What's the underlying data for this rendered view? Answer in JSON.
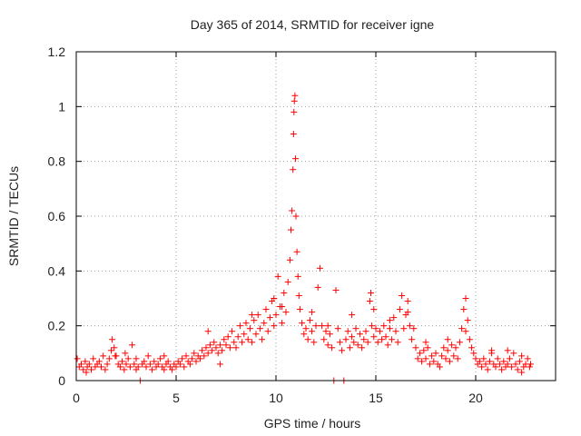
{
  "chart_data": {
    "type": "scatter",
    "title": "Day 365 of 2014, SRMTID for receiver igne",
    "xlabel": "GPS time / hours",
    "ylabel": "SRMTID / TECUs",
    "xlim": [
      0,
      24
    ],
    "ylim": [
      0,
      1.2
    ],
    "xticks": [
      0,
      5,
      10,
      15,
      20
    ],
    "yticks": [
      0,
      0.2,
      0.4,
      0.6,
      0.8,
      1,
      1.2
    ],
    "xtick_labels": [
      "0",
      "5",
      "10",
      "15",
      "20"
    ],
    "ytick_labels": [
      "0",
      "0.2",
      "0.4",
      "0.6",
      "0.8",
      "1",
      "1.2"
    ],
    "grid": true,
    "marker": "+",
    "colors": {
      "marker": "#ff0000",
      "grid": "#a0a0a0",
      "axis": "#000000"
    },
    "series": [
      {
        "name": "SRMTID",
        "points": [
          [
            0.05,
            0.08
          ],
          [
            0.15,
            0.05
          ],
          [
            0.25,
            0.06
          ],
          [
            0.35,
            0.04
          ],
          [
            0.45,
            0.07
          ],
          [
            0.55,
            0.05
          ],
          [
            0.65,
            0.06
          ],
          [
            0.75,
            0.04
          ],
          [
            0.85,
            0.08
          ],
          [
            0.95,
            0.05
          ],
          [
            1.05,
            0.06
          ],
          [
            1.15,
            0.07
          ],
          [
            1.25,
            0.05
          ],
          [
            1.35,
            0.09
          ],
          [
            1.45,
            0.04
          ],
          [
            1.55,
            0.06
          ],
          [
            1.65,
            0.08
          ],
          [
            1.75,
            0.11
          ],
          [
            1.8,
            0.15
          ],
          [
            1.9,
            0.12
          ],
          [
            2.0,
            0.09
          ],
          [
            2.1,
            0.06
          ],
          [
            2.2,
            0.05
          ],
          [
            2.3,
            0.07
          ],
          [
            2.4,
            0.04
          ],
          [
            2.5,
            0.06
          ],
          [
            2.6,
            0.08
          ],
          [
            2.7,
            0.05
          ],
          [
            2.8,
            0.13
          ],
          [
            2.9,
            0.06
          ],
          [
            3.0,
            0.04
          ],
          [
            3.1,
            0.05
          ],
          [
            3.2,
            0.0
          ],
          [
            3.3,
            0.06
          ],
          [
            3.4,
            0.07
          ],
          [
            3.5,
            0.05
          ],
          [
            3.6,
            0.09
          ],
          [
            3.7,
            0.06
          ],
          [
            3.8,
            0.04
          ],
          [
            3.9,
            0.07
          ],
          [
            4.0,
            0.05
          ],
          [
            4.1,
            0.06
          ],
          [
            4.2,
            0.08
          ],
          [
            4.3,
            0.05
          ],
          [
            4.4,
            0.04
          ],
          [
            4.5,
            0.06
          ],
          [
            4.6,
            0.07
          ],
          [
            4.7,
            0.05
          ],
          [
            4.8,
            0.04
          ],
          [
            4.9,
            0.06
          ],
          [
            5.0,
            0.05
          ],
          [
            5.1,
            0.07
          ],
          [
            5.2,
            0.06
          ],
          [
            5.3,
            0.08
          ],
          [
            5.4,
            0.05
          ],
          [
            5.5,
            0.09
          ],
          [
            5.6,
            0.07
          ],
          [
            5.7,
            0.06
          ],
          [
            5.8,
            0.08
          ],
          [
            5.9,
            0.1
          ],
          [
            6.0,
            0.07
          ],
          [
            6.1,
            0.09
          ],
          [
            6.2,
            0.08
          ],
          [
            6.3,
            0.11
          ],
          [
            6.4,
            0.09
          ],
          [
            6.5,
            0.12
          ],
          [
            6.6,
            0.1
          ],
          [
            6.7,
            0.13
          ],
          [
            6.8,
            0.11
          ],
          [
            6.9,
            0.14
          ],
          [
            7.0,
            0.12
          ],
          [
            7.1,
            0.1
          ],
          [
            7.2,
            0.13
          ],
          [
            7.3,
            0.11
          ],
          [
            7.4,
            0.15
          ],
          [
            7.5,
            0.13
          ],
          [
            7.6,
            0.16
          ],
          [
            7.7,
            0.12
          ],
          [
            7.8,
            0.18
          ],
          [
            7.9,
            0.14
          ],
          [
            8.0,
            0.12
          ],
          [
            8.1,
            0.16
          ],
          [
            8.2,
            0.2
          ],
          [
            8.3,
            0.14
          ],
          [
            8.4,
            0.17
          ],
          [
            8.5,
            0.21
          ],
          [
            8.6,
            0.15
          ],
          [
            8.7,
            0.19
          ],
          [
            8.8,
            0.14
          ],
          [
            8.9,
            0.22
          ],
          [
            9.0,
            0.17
          ],
          [
            9.1,
            0.24
          ],
          [
            9.2,
            0.19
          ],
          [
            9.3,
            0.15
          ],
          [
            9.4,
            0.21
          ],
          [
            9.5,
            0.26
          ],
          [
            9.6,
            0.18
          ],
          [
            9.7,
            0.23
          ],
          [
            9.8,
            0.29
          ],
          [
            9.9,
            0.2
          ],
          [
            10.0,
            0.24
          ],
          [
            10.1,
            0.38
          ],
          [
            10.2,
            0.27
          ],
          [
            10.3,
            0.21
          ],
          [
            10.4,
            0.32
          ],
          [
            10.5,
            0.25
          ],
          [
            10.6,
            0.36
          ],
          [
            10.7,
            0.44
          ],
          [
            10.75,
            0.55
          ],
          [
            10.8,
            0.62
          ],
          [
            10.85,
            0.77
          ],
          [
            10.88,
            0.9
          ],
          [
            10.9,
            0.98
          ],
          [
            10.92,
            1.02
          ],
          [
            10.95,
            1.04
          ],
          [
            10.98,
            0.81
          ],
          [
            11.0,
            0.6
          ],
          [
            11.05,
            0.47
          ],
          [
            11.1,
            0.38
          ],
          [
            11.15,
            0.31
          ],
          [
            11.2,
            0.26
          ],
          [
            11.3,
            0.21
          ],
          [
            11.4,
            0.17
          ],
          [
            11.5,
            0.19
          ],
          [
            11.6,
            0.15
          ],
          [
            11.7,
            0.22
          ],
          [
            11.8,
            0.18
          ],
          [
            11.9,
            0.14
          ],
          [
            12.0,
            0.2
          ],
          [
            12.1,
            0.34
          ],
          [
            12.2,
            0.41
          ],
          [
            12.3,
            0.2
          ],
          [
            12.4,
            0.15
          ],
          [
            12.5,
            0.18
          ],
          [
            12.6,
            0.13
          ],
          [
            12.7,
            0.17
          ],
          [
            12.8,
            0.12
          ],
          [
            12.9,
            0.0
          ],
          [
            13.0,
            0.33
          ],
          [
            13.1,
            0.19
          ],
          [
            13.2,
            0.14
          ],
          [
            13.3,
            0.11
          ],
          [
            13.4,
            0.0
          ],
          [
            13.5,
            0.15
          ],
          [
            13.6,
            0.18
          ],
          [
            13.7,
            0.12
          ],
          [
            13.8,
            0.16
          ],
          [
            13.9,
            0.14
          ],
          [
            14.0,
            0.19
          ],
          [
            14.1,
            0.13
          ],
          [
            14.2,
            0.17
          ],
          [
            14.3,
            0.12
          ],
          [
            14.4,
            0.15
          ],
          [
            14.5,
            0.18
          ],
          [
            14.6,
            0.14
          ],
          [
            14.7,
            0.29
          ],
          [
            14.75,
            0.32
          ],
          [
            14.8,
            0.2
          ],
          [
            14.9,
            0.16
          ],
          [
            15.0,
            0.19
          ],
          [
            15.1,
            0.14
          ],
          [
            15.2,
            0.18
          ],
          [
            15.3,
            0.15
          ],
          [
            15.4,
            0.2
          ],
          [
            15.5,
            0.16
          ],
          [
            15.6,
            0.13
          ],
          [
            15.7,
            0.19
          ],
          [
            15.8,
            0.15
          ],
          [
            15.9,
            0.23
          ],
          [
            16.0,
            0.18
          ],
          [
            16.1,
            0.14
          ],
          [
            16.2,
            0.26
          ],
          [
            16.3,
            0.31
          ],
          [
            16.4,
            0.19
          ],
          [
            16.5,
            0.24
          ],
          [
            16.6,
            0.29
          ],
          [
            16.7,
            0.2
          ],
          [
            16.8,
            0.15
          ],
          [
            16.9,
            0.19
          ],
          [
            17.0,
            0.12
          ],
          [
            17.1,
            0.08
          ],
          [
            17.2,
            0.1
          ],
          [
            17.3,
            0.07
          ],
          [
            17.4,
            0.11
          ],
          [
            17.5,
            0.08
          ],
          [
            17.6,
            0.12
          ],
          [
            17.7,
            0.06
          ],
          [
            17.8,
            0.09
          ],
          [
            17.9,
            0.07
          ],
          [
            18.0,
            0.1
          ],
          [
            18.1,
            0.06
          ],
          [
            18.2,
            0.05
          ],
          [
            18.3,
            0.09
          ],
          [
            18.4,
            0.12
          ],
          [
            18.5,
            0.08
          ],
          [
            18.6,
            0.11
          ],
          [
            18.7,
            0.07
          ],
          [
            18.8,
            0.13
          ],
          [
            18.9,
            0.09
          ],
          [
            19.0,
            0.12
          ],
          [
            19.1,
            0.08
          ],
          [
            19.2,
            0.14
          ],
          [
            19.3,
            0.19
          ],
          [
            19.4,
            0.26
          ],
          [
            19.5,
            0.3
          ],
          [
            19.6,
            0.22
          ],
          [
            19.7,
            0.15
          ],
          [
            19.8,
            0.12
          ],
          [
            19.9,
            0.1
          ],
          [
            20.0,
            0.08
          ],
          [
            20.1,
            0.06
          ],
          [
            20.2,
            0.07
          ],
          [
            20.3,
            0.05
          ],
          [
            20.4,
            0.08
          ],
          [
            20.5,
            0.06
          ],
          [
            20.6,
            0.04
          ],
          [
            20.7,
            0.07
          ],
          [
            20.8,
            0.1
          ],
          [
            20.9,
            0.06
          ],
          [
            21.0,
            0.05
          ],
          [
            21.1,
            0.08
          ],
          [
            21.2,
            0.06
          ],
          [
            21.3,
            0.04
          ],
          [
            21.4,
            0.07
          ],
          [
            21.5,
            0.05
          ],
          [
            21.6,
            0.06
          ],
          [
            21.7,
            0.08
          ],
          [
            21.8,
            0.05
          ],
          [
            21.9,
            0.1
          ],
          [
            22.0,
            0.06
          ],
          [
            22.1,
            0.04
          ],
          [
            22.2,
            0.07
          ],
          [
            22.3,
            0.09
          ],
          [
            22.4,
            0.05
          ],
          [
            22.5,
            0.06
          ],
          [
            22.6,
            0.08
          ],
          [
            22.7,
            0.05
          ],
          [
            22.75,
            0.06
          ],
          [
            2.45,
            0.1
          ],
          [
            1.95,
            0.09
          ],
          [
            0.5,
            0.03
          ],
          [
            3.0,
            0.08
          ],
          [
            4.4,
            0.09
          ],
          [
            6.6,
            0.18
          ],
          [
            7.2,
            0.06
          ],
          [
            8.8,
            0.24
          ],
          [
            9.9,
            0.3
          ],
          [
            10.3,
            0.27
          ],
          [
            11.8,
            0.25
          ],
          [
            12.6,
            0.2
          ],
          [
            14.9,
            0.26
          ],
          [
            15.7,
            0.22
          ],
          [
            16.6,
            0.25
          ],
          [
            17.5,
            0.14
          ],
          [
            18.6,
            0.15
          ],
          [
            19.5,
            0.18
          ],
          [
            20.8,
            0.11
          ],
          [
            21.6,
            0.11
          ],
          [
            22.3,
            0.03
          ],
          [
            13.8,
            0.24
          ]
        ]
      }
    ]
  }
}
